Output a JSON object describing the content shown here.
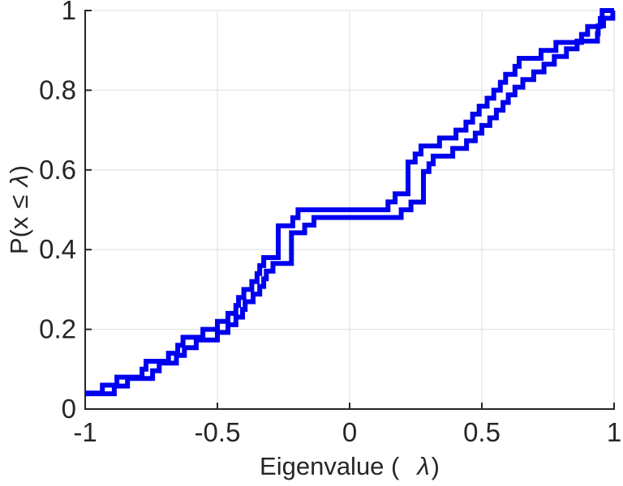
{
  "figure": {
    "title": "",
    "background": "#ffffff"
  },
  "styles": {
    "line_color": "#0000f0",
    "line_width": 6,
    "axis_color": "#262626",
    "axis_width": 2,
    "grid_color": "#e4e4e4",
    "grid_width": 1.3,
    "text_color": "#262626",
    "tick_font_size": 33,
    "label_font_size": 31,
    "tick_length": 8
  },
  "chart_data": {
    "type": "line",
    "subtype": "ecdf-stairs",
    "title": "",
    "xlabel": "Eigenvalue (  λ)",
    "ylabel": "P(x ≤ λ)",
    "xlabel_parts": [
      {
        "t": "Eigenvalue (",
        "italic": false,
        "dx": 0
      },
      {
        "t": "λ",
        "italic": true,
        "dx": 22
      },
      {
        "t": ")",
        "italic": false,
        "dx": 2
      }
    ],
    "ylabel_parts": [
      {
        "t": "P(x",
        "italic": false,
        "dx": 0
      },
      {
        "t": "≤",
        "italic": false,
        "dx": 10
      },
      {
        "t": "λ",
        "italic": true,
        "dx": 10
      },
      {
        "t": ")",
        "italic": false,
        "dx": 1
      }
    ],
    "xlim": [
      -1,
      1
    ],
    "ylim": [
      0,
      1
    ],
    "x_ticks": [
      -1,
      -0.5,
      0,
      0.5,
      1
    ],
    "x_tick_labels": [
      "-1",
      "-0.5",
      "0",
      "0.5",
      "1"
    ],
    "y_ticks": [
      0,
      0.2,
      0.4,
      0.6,
      0.8,
      1
    ],
    "y_tick_labels": [
      "0",
      "0.2",
      "0.4",
      "0.6",
      "0.8",
      "1"
    ],
    "grid": true,
    "legend": null,
    "series": [
      {
        "name": "ecdf-curve-1",
        "n": 50,
        "eigenvalues": [
          -1,
          -1,
          -0.935,
          -0.88,
          -0.785,
          -0.77,
          -0.685,
          -0.65,
          -0.63,
          -0.555,
          -0.5,
          -0.46,
          -0.43,
          -0.42,
          -0.4,
          -0.37,
          -0.35,
          -0.34,
          -0.325,
          -0.27,
          -0.27,
          -0.27,
          -0.27,
          -0.215,
          -0.195,
          0.145,
          0.172,
          0.221,
          0.221,
          0.221,
          0.221,
          0.248,
          0.27,
          0.34,
          0.402,
          0.44,
          0.465,
          0.49,
          0.52,
          0.545,
          0.57,
          0.59,
          0.625,
          0.641,
          0.724,
          0.78,
          0.877,
          0.9,
          0.948,
          0.955
        ]
      },
      {
        "name": "ecdf-curve-2",
        "n": 52,
        "eigenvalues": [
          -1,
          -1,
          -0.89,
          -0.84,
          -0.745,
          -0.72,
          -0.655,
          -0.625,
          -0.58,
          -0.5,
          -0.46,
          -0.43,
          -0.405,
          -0.395,
          -0.365,
          -0.34,
          -0.325,
          -0.315,
          -0.29,
          -0.22,
          -0.22,
          -0.22,
          -0.22,
          -0.17,
          -0.135,
          0.195,
          0.232,
          0.279,
          0.279,
          0.279,
          0.279,
          0.3,
          0.316,
          0.39,
          0.442,
          0.475,
          0.5,
          0.53,
          0.555,
          0.58,
          0.6,
          0.625,
          0.655,
          0.696,
          0.735,
          0.774,
          0.82,
          0.86,
          0.937,
          0.94,
          0.96,
          0.995
        ]
      }
    ]
  }
}
